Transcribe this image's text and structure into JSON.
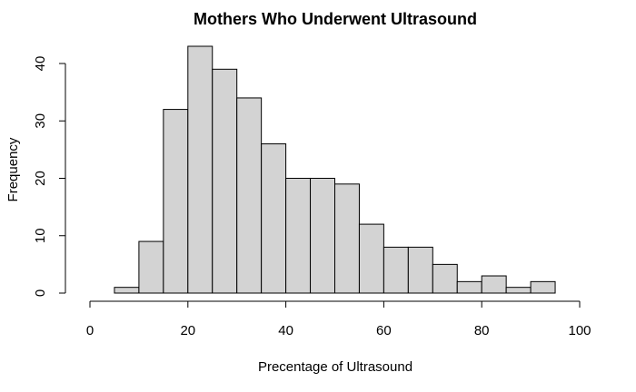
{
  "chart_data": {
    "type": "bar",
    "title": "Mothers Who Underwent Ultrasound",
    "xlabel": "Precentage of Ultrasound",
    "ylabel": "Frequency",
    "bin_edges": [
      5,
      10,
      15,
      20,
      25,
      30,
      35,
      40,
      45,
      50,
      55,
      60,
      65,
      70,
      75,
      80,
      85,
      90,
      95
    ],
    "values": [
      1,
      9,
      32,
      43,
      39,
      34,
      26,
      20,
      20,
      19,
      12,
      8,
      8,
      5,
      2,
      3,
      1,
      2
    ],
    "xlim": [
      0,
      100
    ],
    "ylim": [
      0,
      43
    ],
    "x_ticks": [
      0,
      20,
      40,
      60,
      80,
      100
    ],
    "y_ticks": [
      0,
      10,
      20,
      30,
      40
    ],
    "bar_fill": "#d3d3d3",
    "grid": false,
    "legend": "none"
  }
}
